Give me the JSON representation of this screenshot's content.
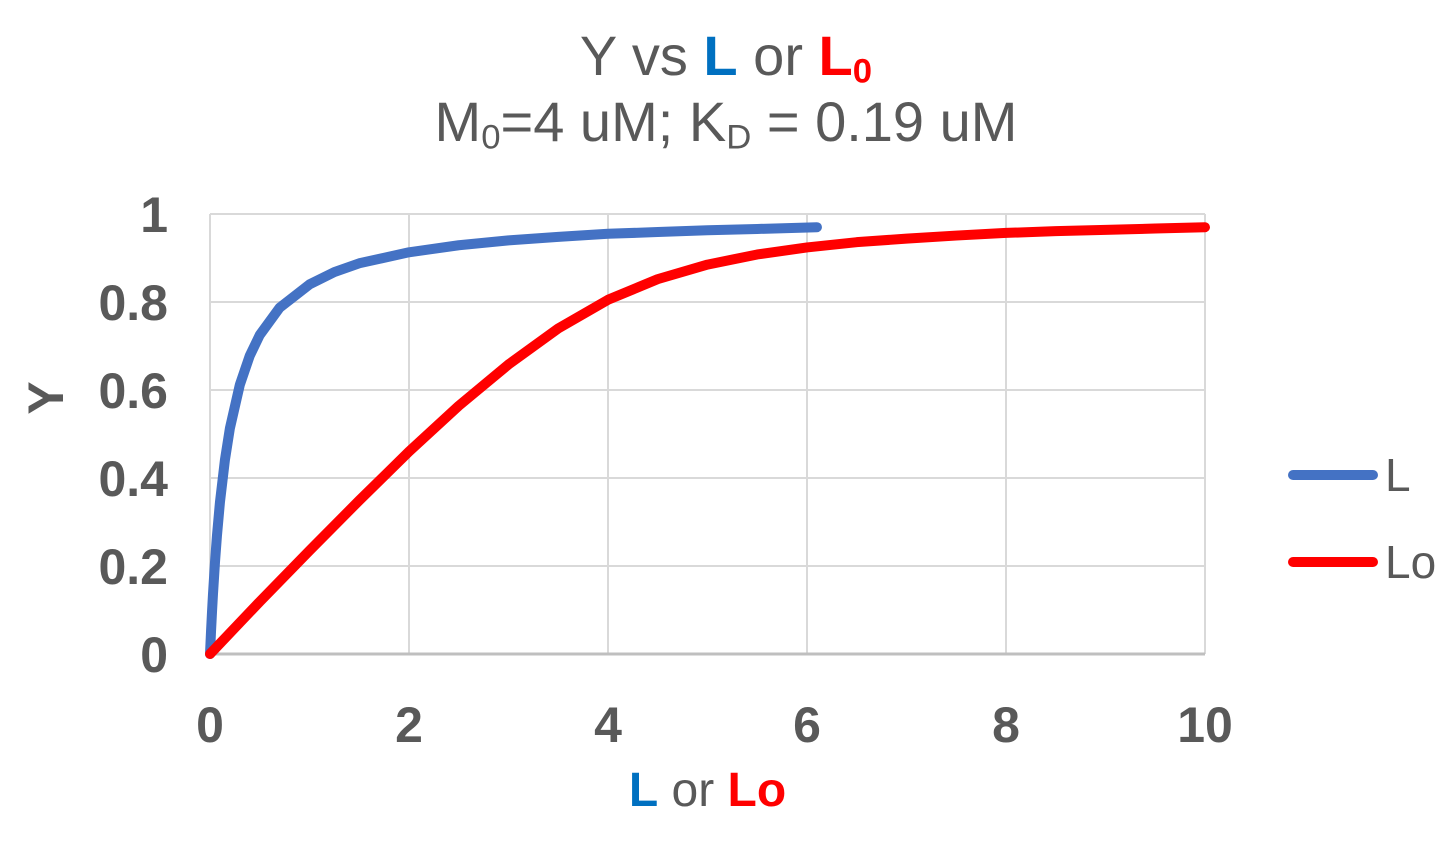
{
  "title": {
    "prefix": "Y vs ",
    "l_label": "L",
    "middle": " or ",
    "l0_base": "L",
    "l0_sub": "0"
  },
  "subtitle": {
    "m_base": "M",
    "m_sub": "0",
    "mid": "=4 uM; K",
    "k_sub": "D",
    "suffix": " = 0.19 uM"
  },
  "axes": {
    "y_title": "Y",
    "x_title_l": "L",
    "x_title_or": " or ",
    "x_title_lo": "Lo"
  },
  "colors": {
    "text_gray": "#595959",
    "title_blue": "#0070C0",
    "title_red": "#FF0000",
    "gridline": "#D9D9D9",
    "axis_line": "#BFBFBF",
    "series_blue": "#4472C4",
    "series_red": "#FF0000"
  },
  "chart_data": {
    "type": "line",
    "title": "Y vs L or L0",
    "subtitle": "M0=4 uM; KD = 0.19 uM",
    "xlabel": "L or Lo",
    "ylabel": "Y",
    "xlim": [
      0,
      10
    ],
    "ylim": [
      0,
      1
    ],
    "x_ticks": [
      0,
      2,
      4,
      6,
      8,
      10
    ],
    "y_ticks": [
      0,
      0.2,
      0.4,
      0.6,
      0.8,
      1
    ],
    "grid": true,
    "legend_position": "right",
    "series": [
      {
        "name": "L",
        "color": "#4472C4",
        "x": [
          0,
          0.01,
          0.02,
          0.03,
          0.05,
          0.07,
          0.1,
          0.15,
          0.2,
          0.3,
          0.4,
          0.5,
          0.7,
          1.0,
          1.25,
          1.5,
          2.0,
          2.5,
          3.0,
          3.5,
          4.0,
          4.5,
          5.0,
          5.5,
          6.1
        ],
        "y": [
          0,
          0.05,
          0.095,
          0.136,
          0.208,
          0.269,
          0.345,
          0.441,
          0.513,
          0.612,
          0.678,
          0.725,
          0.787,
          0.84,
          0.868,
          0.888,
          0.913,
          0.929,
          0.94,
          0.948,
          0.955,
          0.959,
          0.963,
          0.966,
          0.97
        ]
      },
      {
        "name": "Lo",
        "color": "#FF0000",
        "x": [
          0,
          0.5,
          1.0,
          1.5,
          2.0,
          2.5,
          3.0,
          3.5,
          4.0,
          4.5,
          5.0,
          5.5,
          6.0,
          6.5,
          7.0,
          7.5,
          8.0,
          8.5,
          9.0,
          9.5,
          10.0
        ],
        "y": [
          0,
          0.119,
          0.235,
          0.349,
          0.46,
          0.564,
          0.658,
          0.74,
          0.805,
          0.852,
          0.885,
          0.908,
          0.924,
          0.936,
          0.944,
          0.951,
          0.957,
          0.961,
          0.964,
          0.967,
          0.97
        ]
      }
    ]
  }
}
